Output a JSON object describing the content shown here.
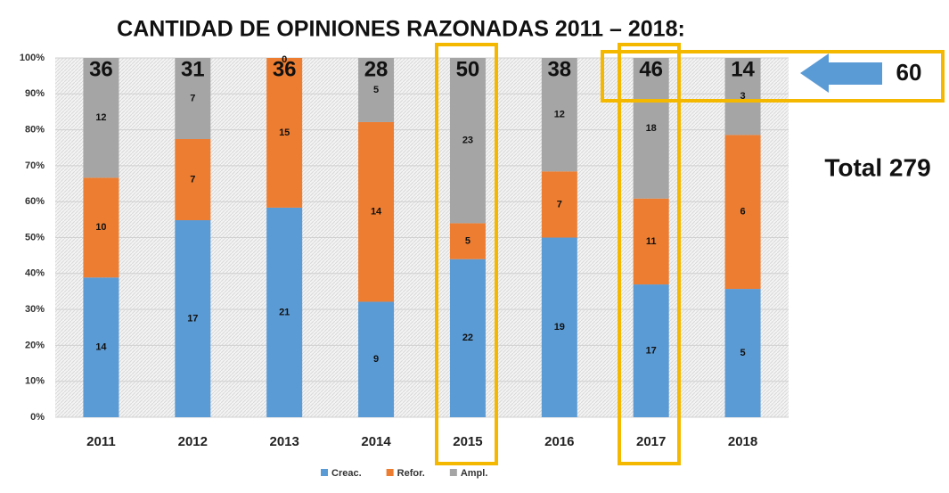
{
  "chart_data": {
    "type": "bar",
    "stack": "percent",
    "title": "CANTIDAD DE OPINIONES RAZONADAS 2011 – 2018:",
    "categories": [
      "2011",
      "2012",
      "2013",
      "2014",
      "2015",
      "2016",
      "2017",
      "2018"
    ],
    "series": [
      {
        "name": "Creac.",
        "color": "#5b9bd5",
        "values": [
          14,
          17,
          21,
          9,
          22,
          19,
          17,
          5
        ]
      },
      {
        "name": "Refor.",
        "color": "#ed7d31",
        "values": [
          10,
          7,
          15,
          14,
          5,
          7,
          11,
          6
        ]
      },
      {
        "name": "Ampl.",
        "color": "#a5a5a5",
        "values": [
          12,
          7,
          0,
          5,
          23,
          12,
          18,
          3
        ]
      }
    ],
    "totals": [
      36,
      31,
      36,
      28,
      50,
      38,
      46,
      14
    ],
    "ylim": [
      0,
      100
    ],
    "yticks": [
      {
        "value": 0,
        "label": "0%"
      },
      {
        "value": 10,
        "label": "10%"
      },
      {
        "value": 20,
        "label": "20%"
      },
      {
        "value": 30,
        "label": "30%"
      },
      {
        "value": 40,
        "label": "40%"
      },
      {
        "value": 50,
        "label": "50%"
      },
      {
        "value": 60,
        "label": "60%"
      },
      {
        "value": 70,
        "label": "70%"
      },
      {
        "value": 80,
        "label": "80%"
      },
      {
        "value": 90,
        "label": "90%"
      },
      {
        "value": 100,
        "label": "100%"
      }
    ],
    "grid": true,
    "legend": "bottom",
    "annotations": [
      "60",
      "Total 279"
    ]
  }
}
